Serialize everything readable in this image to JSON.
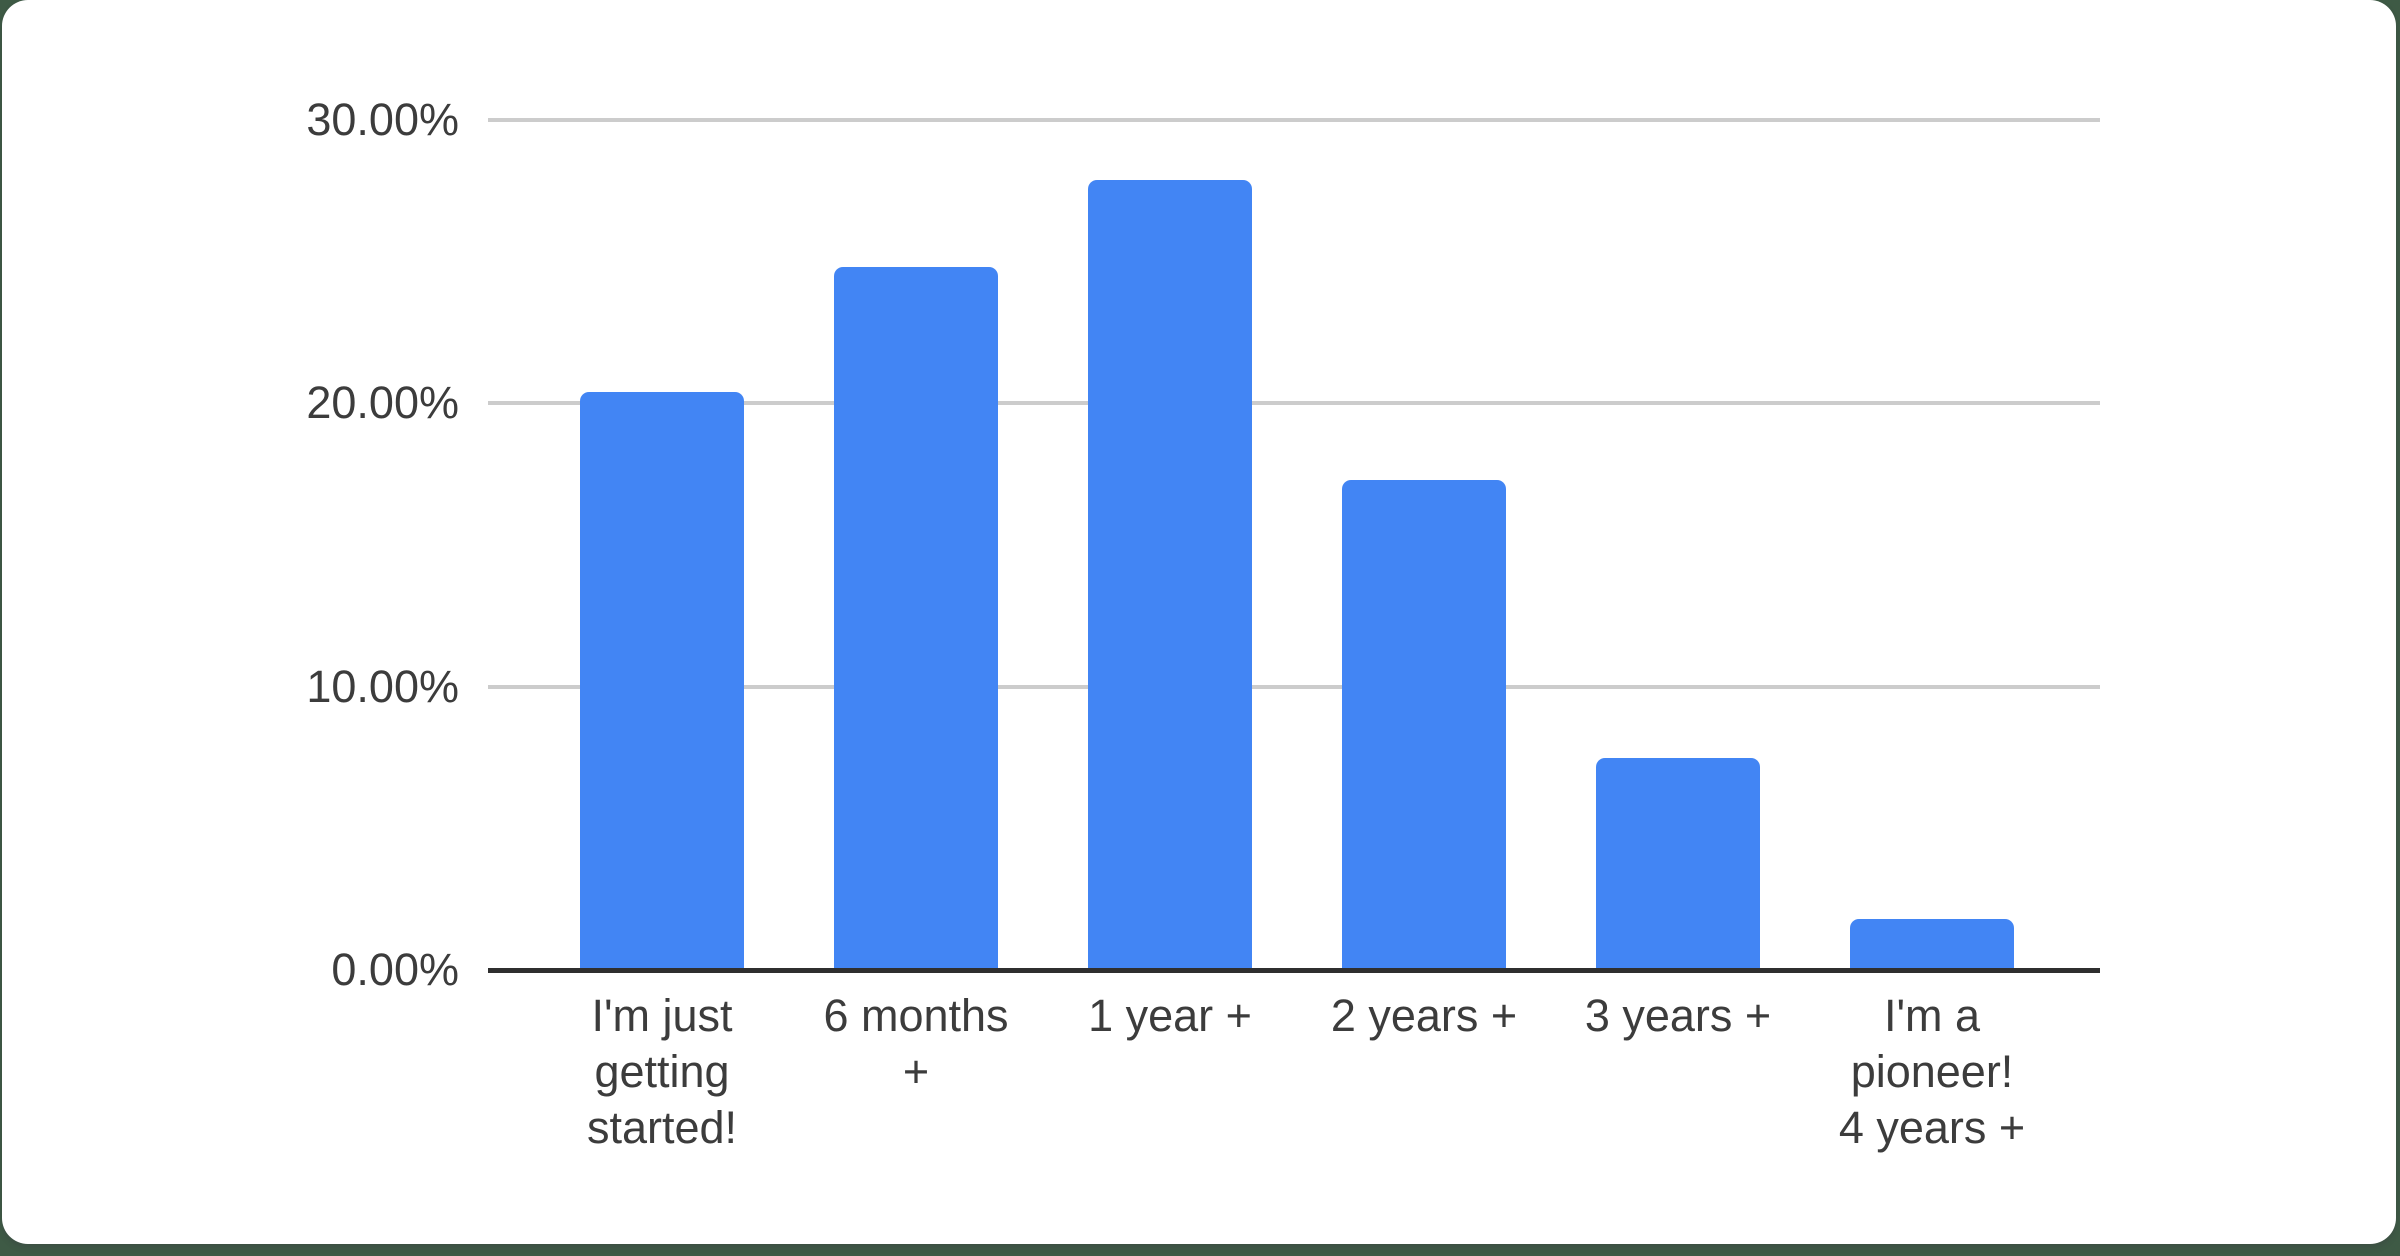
{
  "window": {
    "kind": "chart-card",
    "background_color": "#3e5a45",
    "card_color": "#ffffff"
  },
  "chart_data": {
    "type": "bar",
    "title": "",
    "xlabel": "",
    "ylabel": "",
    "categories": [
      "I'm just getting started!",
      "6 months +",
      "1 year +",
      "2 years +",
      "3 years +",
      "I'm a pioneer! 4 years +"
    ],
    "category_display_lines": [
      [
        "I'm just",
        "getting",
        "started!"
      ],
      [
        "6 months",
        "+"
      ],
      [
        "1 year +"
      ],
      [
        "2 years +"
      ],
      [
        "3 years +"
      ],
      [
        "I'm a",
        "pioneer!",
        "4 years +"
      ]
    ],
    "values": [
      20.4,
      24.8,
      27.9,
      17.3,
      7.5,
      1.8
    ],
    "value_unit": "%",
    "ylim": [
      0,
      30
    ],
    "yticks": [
      0,
      10,
      20,
      30
    ],
    "ytick_labels": [
      "0.00%",
      "10.00%",
      "20.00%",
      "30.00%"
    ],
    "grid": true,
    "legend": "none",
    "colors": {
      "bar": "#4285f4",
      "gridline": "#cccccc",
      "axis": "#2f2f2f",
      "tick_text": "#3c3c3c"
    }
  }
}
